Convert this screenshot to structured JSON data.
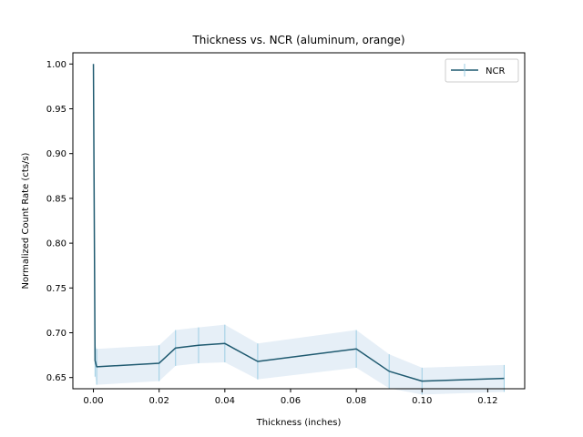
{
  "chart_data": {
    "type": "line",
    "title": "Thickness vs. NCR (aluminum, orange)",
    "xlabel": "Thickness (inches)",
    "ylabel": "Normalized Count Rate (cts/s)",
    "xlim": [
      -0.00625,
      0.13125
    ],
    "ylim": [
      0.6375,
      1.0125
    ],
    "xticks": [
      0.0,
      0.02,
      0.04,
      0.06,
      0.08,
      0.1,
      0.12
    ],
    "xtick_labels": [
      "0.00",
      "0.02",
      "0.04",
      "0.06",
      "0.08",
      "0.10",
      "0.12"
    ],
    "yticks": [
      0.65,
      0.7,
      0.75,
      0.8,
      0.85,
      0.9,
      0.95,
      1.0
    ],
    "ytick_labels": [
      "0.65",
      "0.70",
      "0.75",
      "0.80",
      "0.85",
      "0.90",
      "0.95",
      "1.00"
    ],
    "grid": false,
    "legend": {
      "position": "top-right"
    },
    "series": [
      {
        "name": "NCR",
        "color": "#1f5a70",
        "band_color": "#dbe8f4",
        "errorbar_color": "#9ccde3",
        "x": [
          0.0,
          0.0005,
          0.001,
          0.02,
          0.025,
          0.032,
          0.04,
          0.05,
          0.08,
          0.09,
          0.1,
          0.125
        ],
        "y": [
          1.0,
          0.669,
          0.662,
          0.666,
          0.683,
          0.686,
          0.688,
          0.668,
          0.682,
          0.657,
          0.646,
          0.649
        ],
        "yerr": [
          0.0,
          0.018,
          0.02,
          0.02,
          0.02,
          0.02,
          0.021,
          0.02,
          0.021,
          0.019,
          0.015,
          0.015
        ]
      }
    ]
  }
}
